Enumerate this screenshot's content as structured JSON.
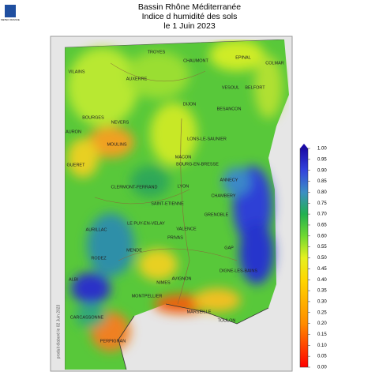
{
  "header": {
    "logo": "METEO FRANCE",
    "title": [
      "Bassin Rhône Méditerranée",
      "Indice d humidité des sols",
      "le 1 Juin 2023"
    ]
  },
  "side_note": "produit élaboré le 02 Juin 2023",
  "colorbar": {
    "ticks": [
      {
        "value": 0,
        "label": "0.00"
      },
      {
        "value": 0.05,
        "label": "0.05"
      },
      {
        "value": 0.1,
        "label": "0.10"
      },
      {
        "value": 0.15,
        "label": "0.15"
      },
      {
        "value": 0.2,
        "label": "0.20"
      },
      {
        "value": 0.25,
        "label": "0.25"
      },
      {
        "value": 0.3,
        "label": "0.30"
      },
      {
        "value": 0.35,
        "label": "0.35"
      },
      {
        "value": 0.4,
        "label": "0.40"
      },
      {
        "value": 0.45,
        "label": "0.45"
      },
      {
        "value": 0.5,
        "label": "0.50"
      },
      {
        "value": 0.55,
        "label": "0.55"
      },
      {
        "value": 0.6,
        "label": "0.60"
      },
      {
        "value": 0.65,
        "label": "0.65"
      },
      {
        "value": 0.7,
        "label": "0.70"
      },
      {
        "value": 0.75,
        "label": "0.75"
      },
      {
        "value": 0.8,
        "label": "0.80"
      },
      {
        "value": 0.85,
        "label": "0.85"
      },
      {
        "value": 0.9,
        "label": "0.90"
      },
      {
        "value": 0.95,
        "label": "0.95"
      },
      {
        "value": 1,
        "label": "1.00"
      }
    ]
  },
  "cities": [
    "TROYES",
    "CHAUMONT",
    "EPINAL",
    "COLMAR",
    "VILAINS",
    "AUXERRE",
    "VESOUL",
    "BELFORT",
    "DIJON",
    "BESANCON",
    "BOURGES",
    "NEVERS",
    "AURON",
    "MOULINS",
    "LONS-LE-SAUNIER",
    "MACON",
    "BOURG-EN-BRESSE",
    "GUERET",
    "ANNECY",
    "CLERMONT-FERRAND",
    "LYON",
    "CHAMBERY",
    "SAINT-ETIENNE",
    "GRENOBLE",
    "LE PUY-EN-VELAY",
    "AURILLAC",
    "VALENCE",
    "PRIVAS",
    "GAP",
    "MENDE",
    "RODEZ",
    "DIGNE-LES-BAINS",
    "ALBI",
    "AVIGNON",
    "NIMES",
    "MONTPELLIER",
    "MARSEILLE",
    "TOULON",
    "CARCASSONNE",
    "PERPIGNAN"
  ]
}
